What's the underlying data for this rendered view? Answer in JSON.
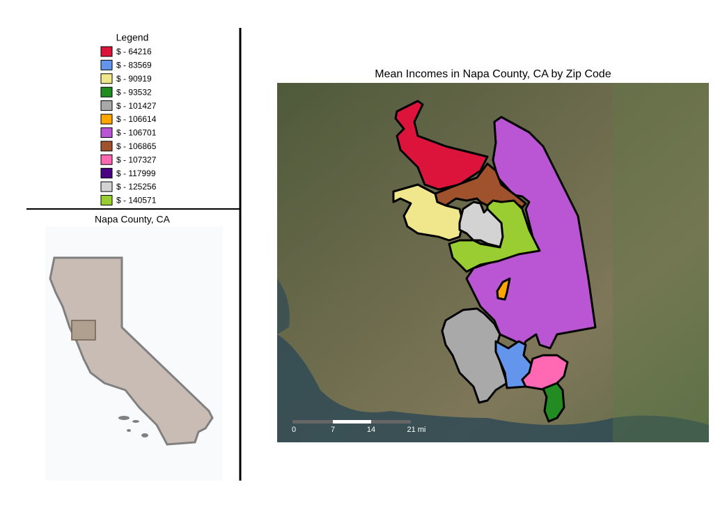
{
  "legend": {
    "title": "Legend",
    "items": [
      {
        "label": "$ - 64216",
        "color": "#dc143c"
      },
      {
        "label": "$ - 83569",
        "color": "#6495ed"
      },
      {
        "label": "$ - 90919",
        "color": "#f0e68c"
      },
      {
        "label": "$ - 93532",
        "color": "#228b22"
      },
      {
        "label": "$ - 101427",
        "color": "#a9a9a9"
      },
      {
        "label": "$ - 106614",
        "color": "#ffa500"
      },
      {
        "label": "$ - 106701",
        "color": "#ba55d3"
      },
      {
        "label": "$ - 106865",
        "color": "#a0522d"
      },
      {
        "label": "$ - 107327",
        "color": "#ff69b4"
      },
      {
        "label": "$ - 117999",
        "color": "#4b0082"
      },
      {
        "label": "$ - 125256",
        "color": "#d3d3d3"
      },
      {
        "label": "$ - 140571",
        "color": "#9acd32"
      }
    ]
  },
  "inset": {
    "title": "Napa County, CA"
  },
  "map": {
    "title": "Mean Incomes in Napa County, CA by Zip Code",
    "scale_labels": [
      "0",
      "7",
      "14",
      "21 mi"
    ]
  }
}
